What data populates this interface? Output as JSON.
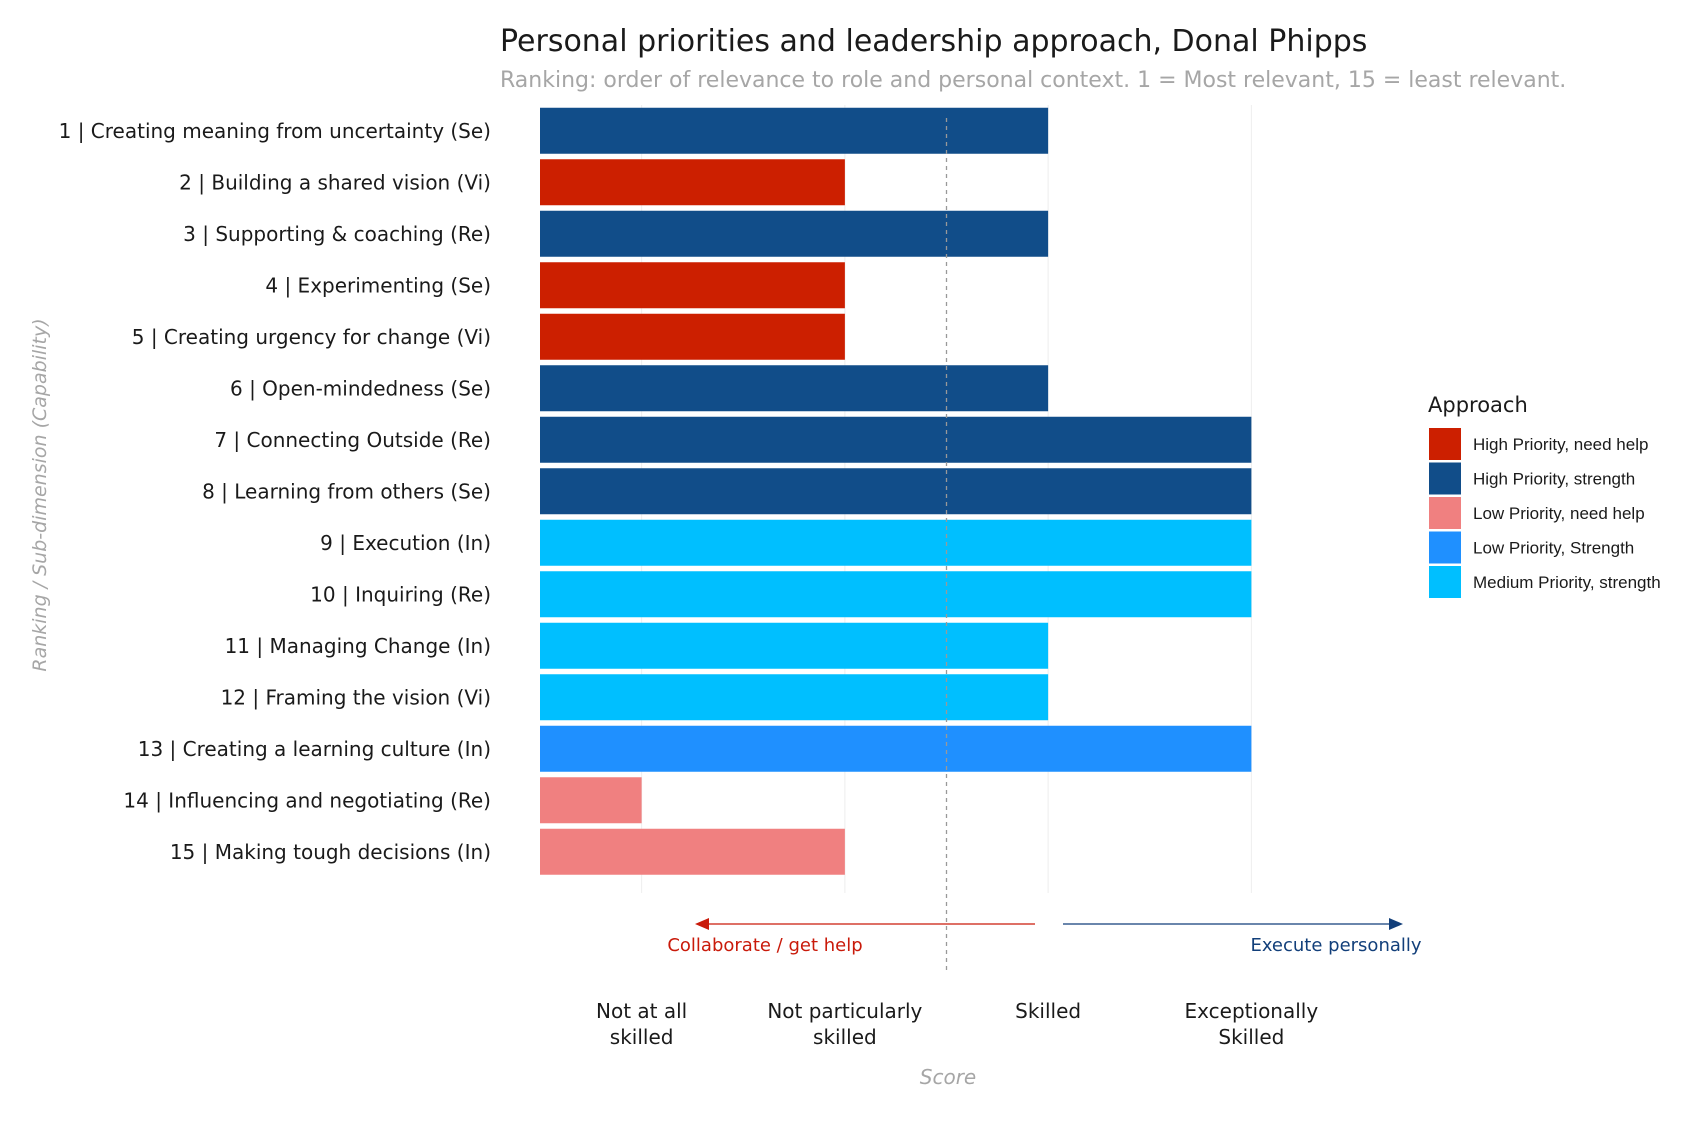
{
  "chart_data": {
    "type": "bar",
    "orientation": "horizontal",
    "title": "Personal priorities and leadership approach, Donal Phipps",
    "subtitle": "Ranking: order of relevance to role and personal context. 1 = Most relevant, 15 = least relevant.",
    "ylabel": "Ranking / Sub-dimension (Capability)",
    "xlabel": "Score",
    "xlim": [
      0.5,
      4.5
    ],
    "x_ticks": [
      {
        "value": 1,
        "label": "Not at all skilled"
      },
      {
        "value": 2,
        "label": "Not particularly skilled"
      },
      {
        "value": 3,
        "label": "Skilled"
      },
      {
        "value": 4,
        "label": "Exceptionally Skilled"
      }
    ],
    "grid": {
      "vertical": true,
      "horizontal": false
    },
    "reference_line": {
      "x": 2.5,
      "style": "dashed"
    },
    "annotations": [
      {
        "text": "Collaborate / get help",
        "direction": "left",
        "color": "#c91a0a"
      },
      {
        "text": "Execute personally",
        "direction": "right",
        "color": "#123f7a"
      }
    ],
    "legend": {
      "title": "Approach",
      "placement": "right",
      "entries": [
        {
          "label": "High Priority, need help",
          "color": "#cc1f00"
        },
        {
          "label": "High Priority, strength",
          "color": "#114d89"
        },
        {
          "label": "Low Priority, need help",
          "color": "#f08080"
        },
        {
          "label": "Low Priority, Strength",
          "color": "#1f90ff"
        },
        {
          "label": "Medium Priority, strength",
          "color": "#00bfff"
        }
      ]
    },
    "bars": [
      {
        "label": "1 | Creating meaning from uncertainty (Se)",
        "value": 3,
        "approach": "High Priority, strength"
      },
      {
        "label": "2 | Building a shared vision (Vi)",
        "value": 2,
        "approach": "High Priority, need help"
      },
      {
        "label": "3 | Supporting & coaching (Re)",
        "value": 3,
        "approach": "High Priority, strength"
      },
      {
        "label": "4 | Experimenting (Se)",
        "value": 2,
        "approach": "High Priority, need help"
      },
      {
        "label": "5 | Creating urgency for change (Vi)",
        "value": 2,
        "approach": "High Priority, need help"
      },
      {
        "label": "6 | Open-mindedness (Se)",
        "value": 3,
        "approach": "High Priority, strength"
      },
      {
        "label": "7 | Connecting Outside (Re)",
        "value": 4,
        "approach": "High Priority, strength"
      },
      {
        "label": "8 | Learning from others (Se)",
        "value": 4,
        "approach": "High Priority, strength"
      },
      {
        "label": "9 | Execution (In)",
        "value": 4,
        "approach": "Medium Priority, strength"
      },
      {
        "label": "10 | Inquiring (Re)",
        "value": 4,
        "approach": "Medium Priority, strength"
      },
      {
        "label": "11 | Managing Change (In)",
        "value": 3,
        "approach": "Medium Priority, strength"
      },
      {
        "label": "12 | Framing the vision (Vi)",
        "value": 3,
        "approach": "Medium Priority, strength"
      },
      {
        "label": "13 | Creating a learning culture (In)",
        "value": 4,
        "approach": "Low Priority, Strength"
      },
      {
        "label": "14 | Influencing and negotiating (Re)",
        "value": 1,
        "approach": "Low Priority, need help"
      },
      {
        "label": "15 | Making tough decisions (In)",
        "value": 2,
        "approach": "Low Priority, need help"
      }
    ]
  }
}
